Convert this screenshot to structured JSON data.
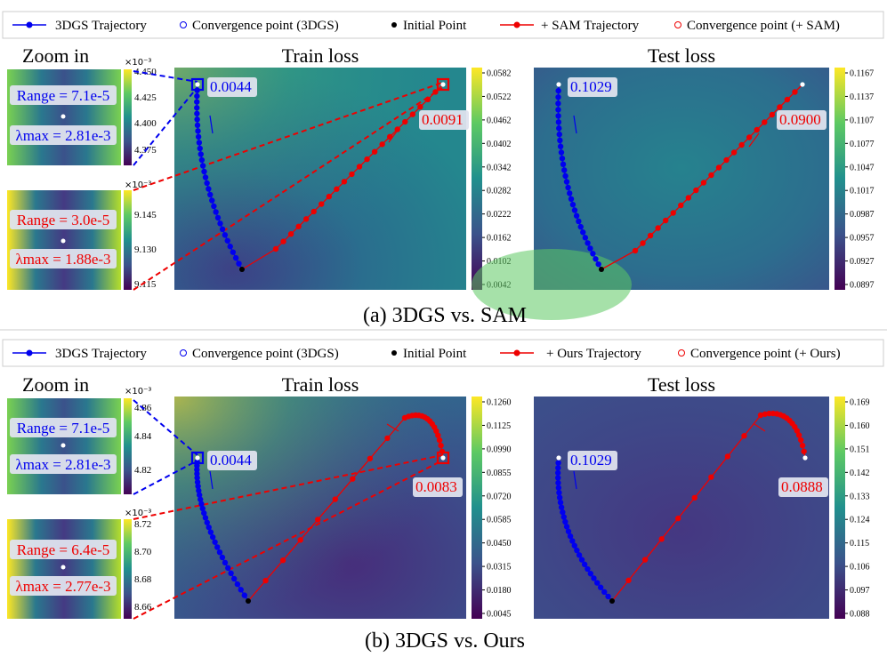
{
  "legend": {
    "items_a": [
      "3DGS Trajectory",
      "Convergence point (3DGS)",
      "Initial Point",
      "+ SAM Trajectory",
      "Convergence point (+ SAM)"
    ],
    "items_b": [
      "3DGS Trajectory",
      "Convergence point (3DGS)",
      "Initial Point",
      "+ Ours Trajectory",
      "Convergence point (+ Ours)"
    ]
  },
  "colors": {
    "blue": "#0000ee",
    "red": "#ee0000",
    "black": "#000000"
  },
  "chart_data": [
    {
      "type": "line",
      "panel": "a",
      "caption": "(a) 3DGS vs. SAM",
      "zoom_title": "Zoom in",
      "zoom_blue": {
        "exp": "×10⁻³",
        "ticks": [
          "4.450",
          "4.425",
          "4.400",
          "4.375"
        ],
        "range_text": "Range = 7.1e-5",
        "lambda_text": "λmax = 2.81e-3"
      },
      "zoom_red": {
        "exp": "×10⁻³",
        "ticks": [
          "9.145",
          "9.130",
          "9.115"
        ],
        "range_text": "Range = 3.0e-5",
        "lambda_text": "λmax = 1.88e-3"
      },
      "train": {
        "title": "Train loss",
        "colorbar_ticks": [
          "0.0582",
          "0.0522",
          "0.0462",
          "0.0402",
          "0.0342",
          "0.0282",
          "0.0222",
          "0.0162",
          "0.0102",
          "0.0042"
        ],
        "blue_label": "0.0044",
        "red_label": "0.0091"
      },
      "test": {
        "title": "Test loss",
        "colorbar_ticks": [
          "0.1167",
          "0.1137",
          "0.1107",
          "0.1077",
          "0.1047",
          "0.1017",
          "0.0987",
          "0.0957",
          "0.0927",
          "0.0897"
        ],
        "blue_label": "0.1029",
        "red_label": "0.0900"
      }
    },
    {
      "type": "line",
      "panel": "b",
      "caption": "(b) 3DGS vs. Ours",
      "zoom_title": "Zoom in",
      "zoom_blue": {
        "exp": "×10⁻³",
        "ticks": [
          "4.86",
          "4.84",
          "4.82"
        ],
        "range_text": "Range = 7.1e-5",
        "lambda_text": "λmax = 2.81e-3"
      },
      "zoom_red": {
        "exp": "×10⁻³",
        "ticks": [
          "8.72",
          "8.70",
          "8.68",
          "8.66"
        ],
        "range_text": "Range = 6.4e-5",
        "lambda_text": "λmax = 2.77e-3"
      },
      "train": {
        "title": "Train loss",
        "colorbar_ticks": [
          "0.1260",
          "0.1125",
          "0.0990",
          "0.0855",
          "0.0720",
          "0.0585",
          "0.0450",
          "0.0315",
          "0.0180",
          "0.0045"
        ],
        "blue_label": "0.0044",
        "red_label": "0.0083"
      },
      "test": {
        "title": "Test loss",
        "colorbar_ticks": [
          "0.169",
          "0.160",
          "0.151",
          "0.142",
          "0.133",
          "0.124",
          "0.115",
          "0.106",
          "0.097",
          "0.088"
        ],
        "blue_label": "0.1029",
        "red_label": "0.0888"
      }
    }
  ]
}
